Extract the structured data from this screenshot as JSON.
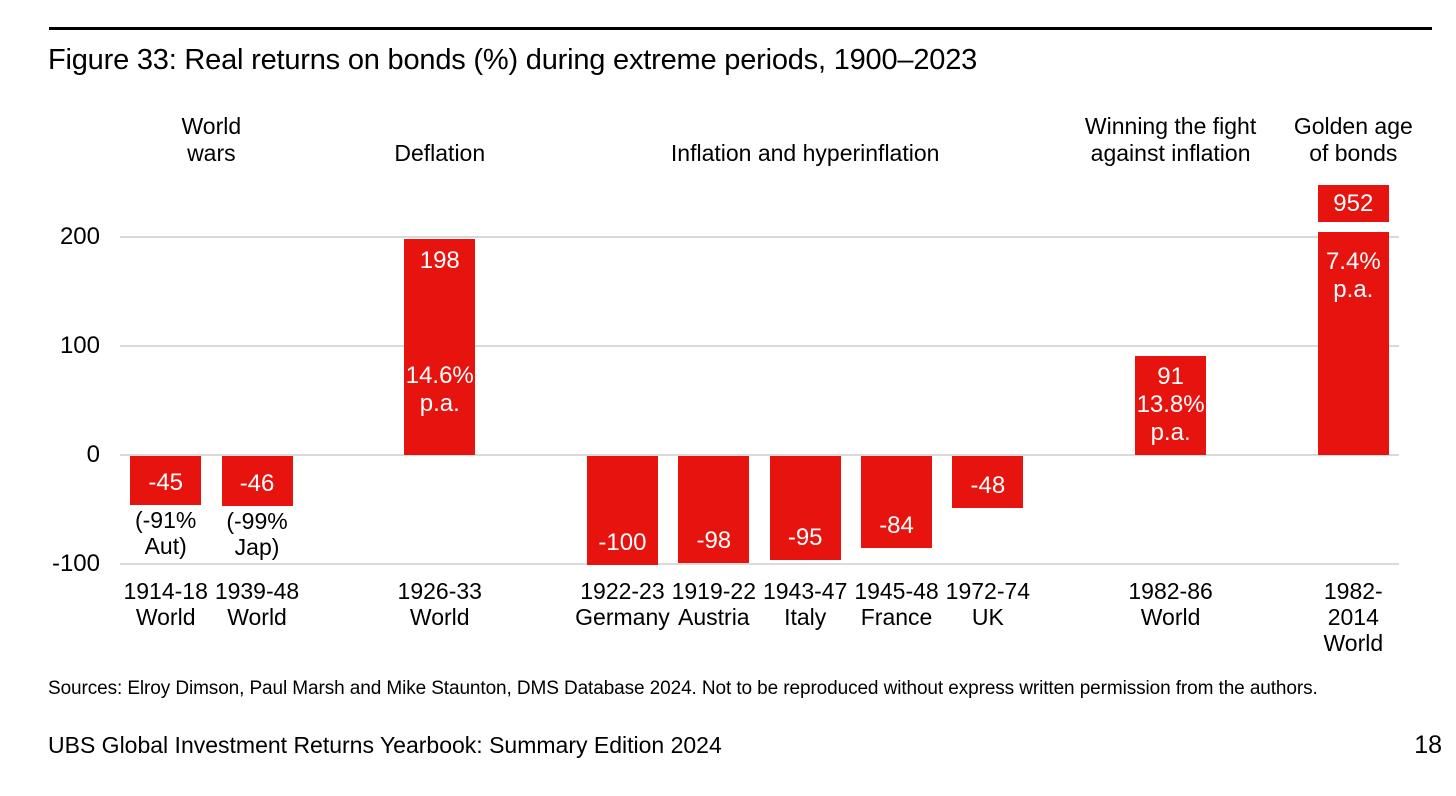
{
  "title": "Figure 33: Real returns on bonds (%) during extreme periods, 1900–2023",
  "sources": "Sources: Elroy Dimson, Paul Marsh and Mike Staunton, DMS Database 2024. Not to be reproduced without express written permission from the authors.",
  "footer": {
    "text": "UBS Global Investment Returns Yearbook: Summary Edition 2024",
    "page_number": "18"
  },
  "colors": {
    "bar_red": "#e6130e",
    "gridline": "#d9d9d9",
    "bar_label_text": "#ffffff",
    "text": "#000000"
  },
  "chart_data": {
    "type": "bar",
    "title": "Real returns on bonds (%) during extreme periods, 1900–2023",
    "xlabel": "",
    "ylabel": "",
    "grid": true,
    "legend": false,
    "y_ticks": [
      200,
      100,
      0,
      -100
    ],
    "ylim": [
      -100,
      205
    ],
    "num_slots": 14,
    "groups": [
      {
        "label_lines": [
          "World",
          "wars"
        ],
        "slot_start": 0,
        "slot_end": 1
      },
      {
        "label_lines": [
          "Deflation"
        ],
        "slot_start": 3,
        "slot_end": 3
      },
      {
        "label_lines": [
          "Inflation and hyperinflation"
        ],
        "slot_start": 5,
        "slot_end": 9
      },
      {
        "label_lines": [
          "Winning the fight",
          "against inflation"
        ],
        "slot_start": 11,
        "slot_end": 11
      },
      {
        "label_lines": [
          "Golden age",
          "of bonds"
        ],
        "slot_start": 13,
        "slot_end": 13
      }
    ],
    "bars": [
      {
        "slot": 0,
        "tick_lines": [
          "1914-18",
          "World"
        ],
        "value": -45,
        "bar_label": "-45",
        "below_label_lines": [
          "(-91%",
          "Aut)"
        ]
      },
      {
        "slot": 1,
        "tick_lines": [
          "1939-48",
          "World"
        ],
        "value": -46,
        "bar_label": "-46",
        "below_label_lines": [
          "(-99%",
          "Jap)"
        ]
      },
      {
        "slot": 3,
        "tick_lines": [
          "1926-33",
          "World"
        ],
        "value": 198,
        "bar_label": "198",
        "inside_mid_lines": [
          "14.6%",
          "p.a."
        ]
      },
      {
        "slot": 5,
        "tick_lines": [
          "1922-23",
          "Germany"
        ],
        "value": -100,
        "bar_label": "-100"
      },
      {
        "slot": 6,
        "tick_lines": [
          "1919-22",
          "Austria"
        ],
        "value": -98,
        "bar_label": "-98"
      },
      {
        "slot": 7,
        "tick_lines": [
          "1943-47",
          "Italy"
        ],
        "value": -95,
        "bar_label": "-95"
      },
      {
        "slot": 8,
        "tick_lines": [
          "1945-48",
          "France"
        ],
        "value": -84,
        "bar_label": "-84"
      },
      {
        "slot": 9,
        "tick_lines": [
          "1972-74",
          "UK"
        ],
        "value": -48,
        "bar_label": "-48"
      },
      {
        "slot": 11,
        "tick_lines": [
          "1982-86",
          "World"
        ],
        "value": 91,
        "inside_center_lines": [
          "91",
          "13.8%",
          "p.a."
        ]
      },
      {
        "slot": 13,
        "tick_lines": [
          "1982-",
          "2014",
          "World"
        ],
        "value": 952,
        "display_capped_at": 205,
        "above_box_label": "952",
        "inside_top_lines": [
          "7.4%",
          "p.a."
        ]
      }
    ]
  }
}
